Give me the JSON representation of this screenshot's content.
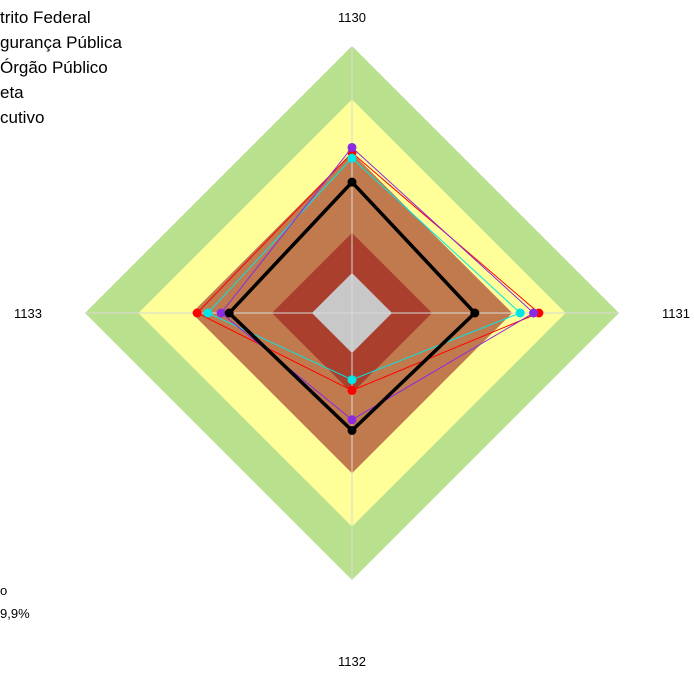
{
  "legend": {
    "lines": [
      "trito Federal",
      "gurança Pública",
      "Órgão Público",
      "eta",
      "cutivo"
    ]
  },
  "footnote": {
    "lines": [
      "o",
      "9,9%"
    ]
  },
  "chart_data": {
    "type": "radar",
    "axes": [
      "1130",
      "1131",
      "1132",
      "1133"
    ],
    "rmax": 100,
    "grid": true,
    "bands": [
      {
        "from": 80,
        "to": 100,
        "color": "#b9e08d"
      },
      {
        "from": 60,
        "to": 80,
        "color": "#ffff99"
      },
      {
        "from": 30,
        "to": 60,
        "color": "#c07a4e"
      },
      {
        "from": 15,
        "to": 30,
        "color": "#a93f2c"
      },
      {
        "from": 0,
        "to": 15,
        "color": "#c8c8c8"
      }
    ],
    "series": [
      {
        "color": "#000000",
        "values": [
          49,
          46,
          44,
          46
        ],
        "emphasis": true
      },
      {
        "color": "#ff0000",
        "values": [
          60,
          70,
          29,
          58
        ]
      },
      {
        "color": "#00e5e5",
        "values": [
          58,
          63,
          25,
          54
        ]
      },
      {
        "color": "#8a2be2",
        "values": [
          62,
          68,
          40,
          49
        ]
      }
    ]
  }
}
